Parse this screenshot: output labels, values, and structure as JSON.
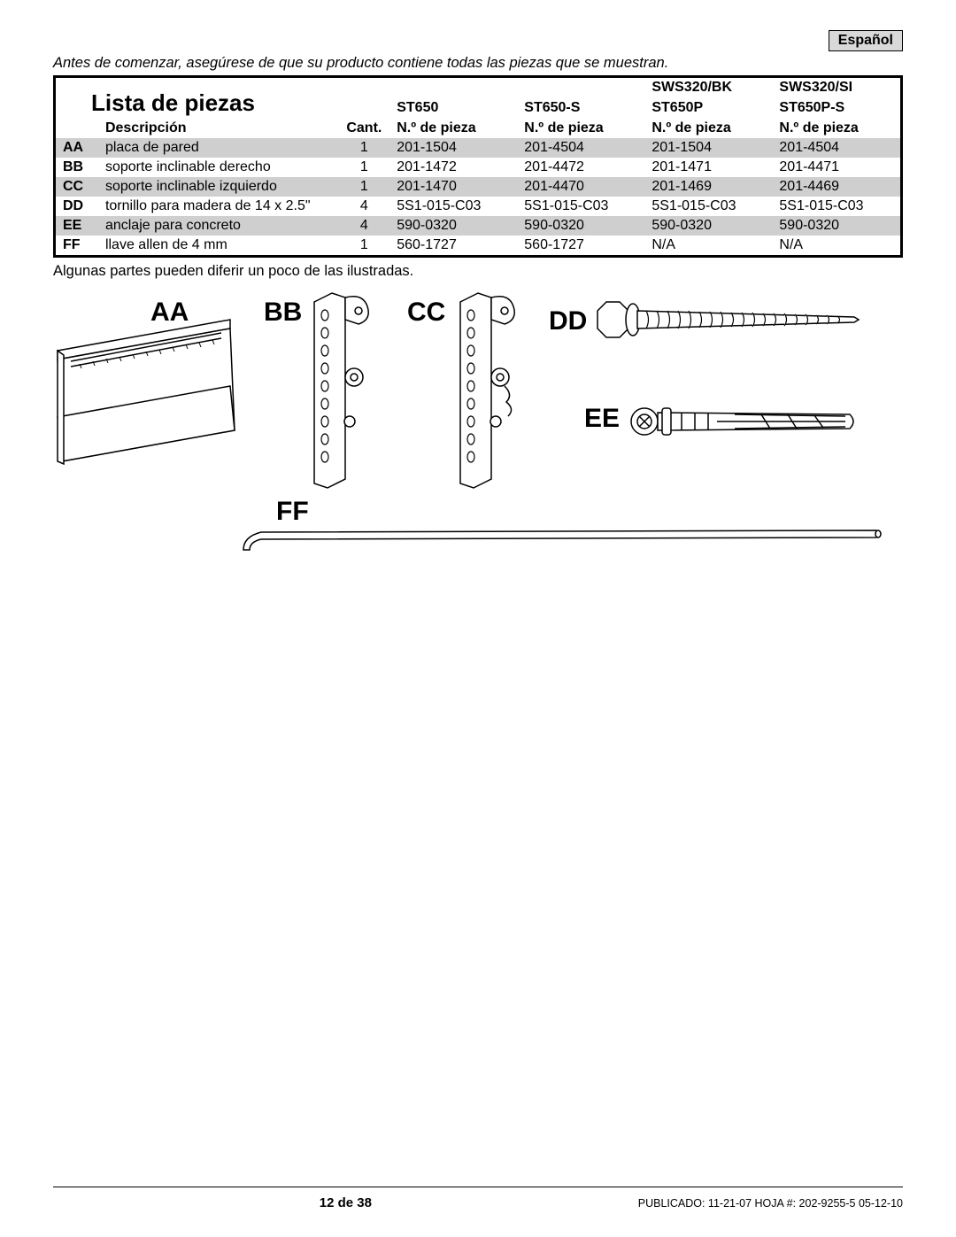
{
  "language_tag": "Español",
  "intro": "Antes de comenzar, asegúrese de que su producto contiene todas las piezas que se muestran.",
  "table": {
    "title": "Lista de piezas",
    "header_labels": {
      "desc": "Descripción",
      "qty": "Cant.",
      "partno": "N.º de pieza"
    },
    "model_columns": [
      {
        "top": "",
        "mid": "ST650"
      },
      {
        "top": "",
        "mid": "ST650-S"
      },
      {
        "top": "SWS320/BK",
        "mid": "ST650P"
      },
      {
        "top": "SWS320/SI",
        "mid": "ST650P-S"
      }
    ],
    "rows": [
      {
        "code": "AA",
        "desc": "placa de pared",
        "qty": "1",
        "p": [
          "201-1504",
          "201-4504",
          "201-1504",
          "201-4504"
        ],
        "shaded": true
      },
      {
        "code": "BB",
        "desc": "soporte inclinable derecho",
        "qty": "1",
        "p": [
          "201-1472",
          "201-4472",
          "201-1471",
          "201-4471"
        ],
        "shaded": false
      },
      {
        "code": "CC",
        "desc": "soporte inclinable izquierdo",
        "qty": "1",
        "p": [
          "201-1470",
          "201-4470",
          "201-1469",
          "201-4469"
        ],
        "shaded": true
      },
      {
        "code": "DD",
        "desc": "tornillo para madera de 14 x 2.5\"",
        "qty": "4",
        "p": [
          "5S1-015-C03",
          "5S1-015-C03",
          "5S1-015-C03",
          "5S1-015-C03"
        ],
        "shaded": false
      },
      {
        "code": "EE",
        "desc": "anclaje para concreto",
        "qty": "4",
        "p": [
          "590-0320",
          "590-0320",
          "590-0320",
          "590-0320"
        ],
        "shaded": true
      },
      {
        "code": "FF",
        "desc": "llave allen de 4 mm",
        "qty": "1",
        "p": [
          "560-1727",
          "560-1727",
          "N/A",
          "N/A"
        ],
        "shaded": false
      }
    ]
  },
  "note": "Algunas partes pueden diferir un poco de las ilustradas.",
  "part_labels": {
    "AA": "AA",
    "BB": "BB",
    "CC": "CC",
    "DD": "DD",
    "EE": "EE",
    "FF": "FF"
  },
  "footer": {
    "page": "12 de 38",
    "meta": "PUBLICADO: 11-21-07   HOJA #: 202-9255-5   05-12-10"
  },
  "colors": {
    "shade": "#cfcfcf",
    "border": "#000000",
    "text": "#000000",
    "bg": "#ffffff"
  }
}
